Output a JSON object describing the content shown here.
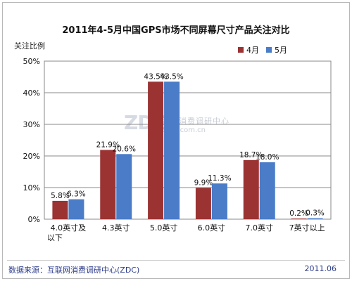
{
  "chart_data": {
    "type": "bar",
    "title": "2011年4-5月中国GPS市场不同屏幕尺寸产品关注对比",
    "ylabel": "关注比例",
    "categories": [
      "4.0英寸及以下",
      "4.3英寸",
      "5.0英寸",
      "6.0英寸",
      "7.0英寸",
      "7英寸以上"
    ],
    "series": [
      {
        "name": "4月",
        "values": [
          5.8,
          21.9,
          43.5,
          9.9,
          18.7,
          0.2
        ],
        "labels": [
          "5.8%",
          "21.9%",
          "43.5%",
          "9.9%",
          "18.7%",
          "0.2%"
        ],
        "color": "#9b3333"
      },
      {
        "name": "5月",
        "values": [
          6.3,
          20.6,
          43.5,
          11.3,
          18.0,
          0.3
        ],
        "labels": [
          "6.3%",
          "20.6%",
          "43.5%",
          "11.3%",
          "18.0%",
          "0.3%"
        ],
        "color": "#4a7cc7"
      }
    ],
    "yticks": [
      "0%",
      "10%",
      "20%",
      "30%",
      "40%",
      "50%"
    ],
    "ylim": [
      0,
      50
    ],
    "legend": "top-right",
    "grid": true
  },
  "footer": {
    "source": "数据来源：互联网消费调研中心(ZDC)",
    "date": "2011.06"
  },
  "watermark": {
    "logo": "ZDC",
    "text": "互联网消费调研中心",
    "url": "zdc.zol.com.cn"
  }
}
